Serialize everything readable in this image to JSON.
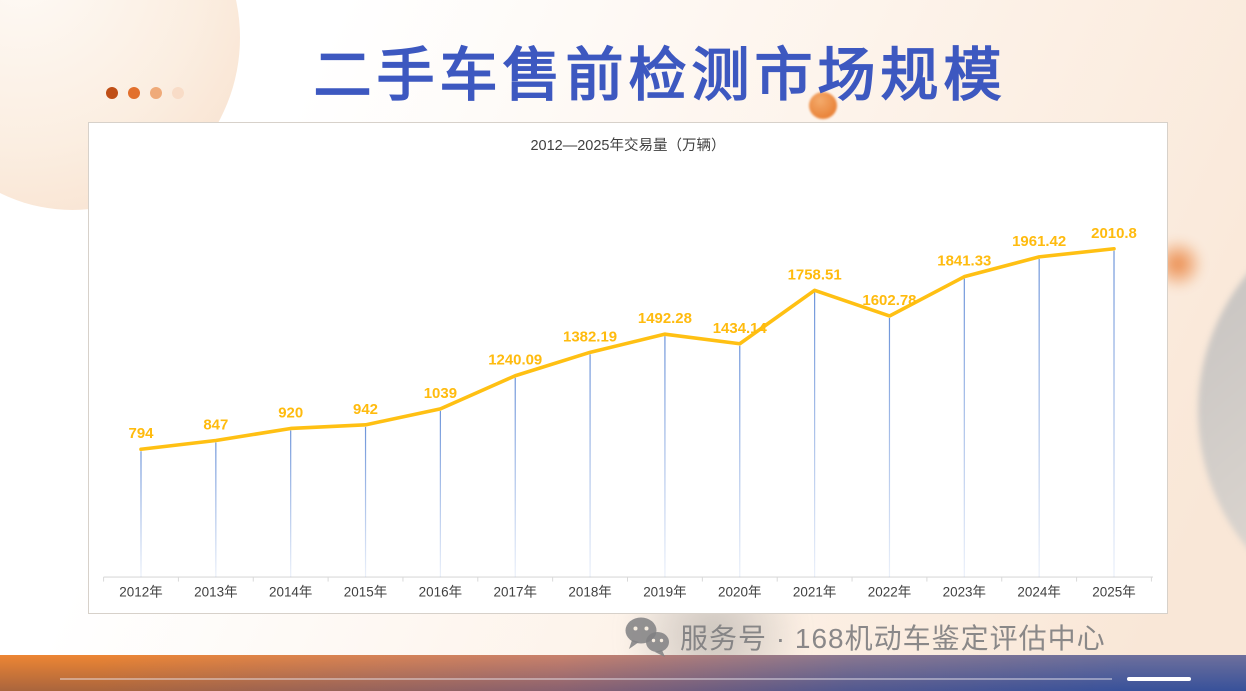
{
  "slide": {
    "title": "二手车售前检测市场规模",
    "title_color": "#3D58C0",
    "dot_colors": [
      "#BF4E16",
      "#E2702D",
      "#EFAA79",
      "#F8DCC7"
    ]
  },
  "chart_data": {
    "type": "line",
    "title": "2012—2025年交易量（万辆）",
    "categories": [
      "2012年",
      "2013年",
      "2014年",
      "2015年",
      "2016年",
      "2017年",
      "2018年",
      "2019年",
      "2020年",
      "2021年",
      "2022年",
      "2023年",
      "2024年",
      "2025年"
    ],
    "series": [
      {
        "name": "交易量",
        "values": [
          794,
          847,
          920,
          942,
          1039,
          1240.09,
          1382.19,
          1492.28,
          1434.14,
          1758.51,
          1602.78,
          1841.33,
          1961.42,
          2010.8
        ]
      }
    ],
    "data_labels": [
      "794",
      "847",
      "920",
      "942",
      "1039",
      "1240.09",
      "1382.19",
      "1492.28",
      "1434.14",
      "1758.51",
      "1602.78",
      "1841.33",
      "1961.42",
      "2010.8"
    ],
    "ylim": [
      0,
      2200
    ],
    "grid": false,
    "legend": "none",
    "line_color": "#FFC013",
    "label_color": "#FFBB0E",
    "drop_line_color": "#5B87D5",
    "axis_color": "#D9D9D9",
    "tick_label_color": "#404040"
  },
  "watermark": {
    "icon": "wechat-icon",
    "text": "服务号 · 168机动车鉴定评估中心"
  }
}
